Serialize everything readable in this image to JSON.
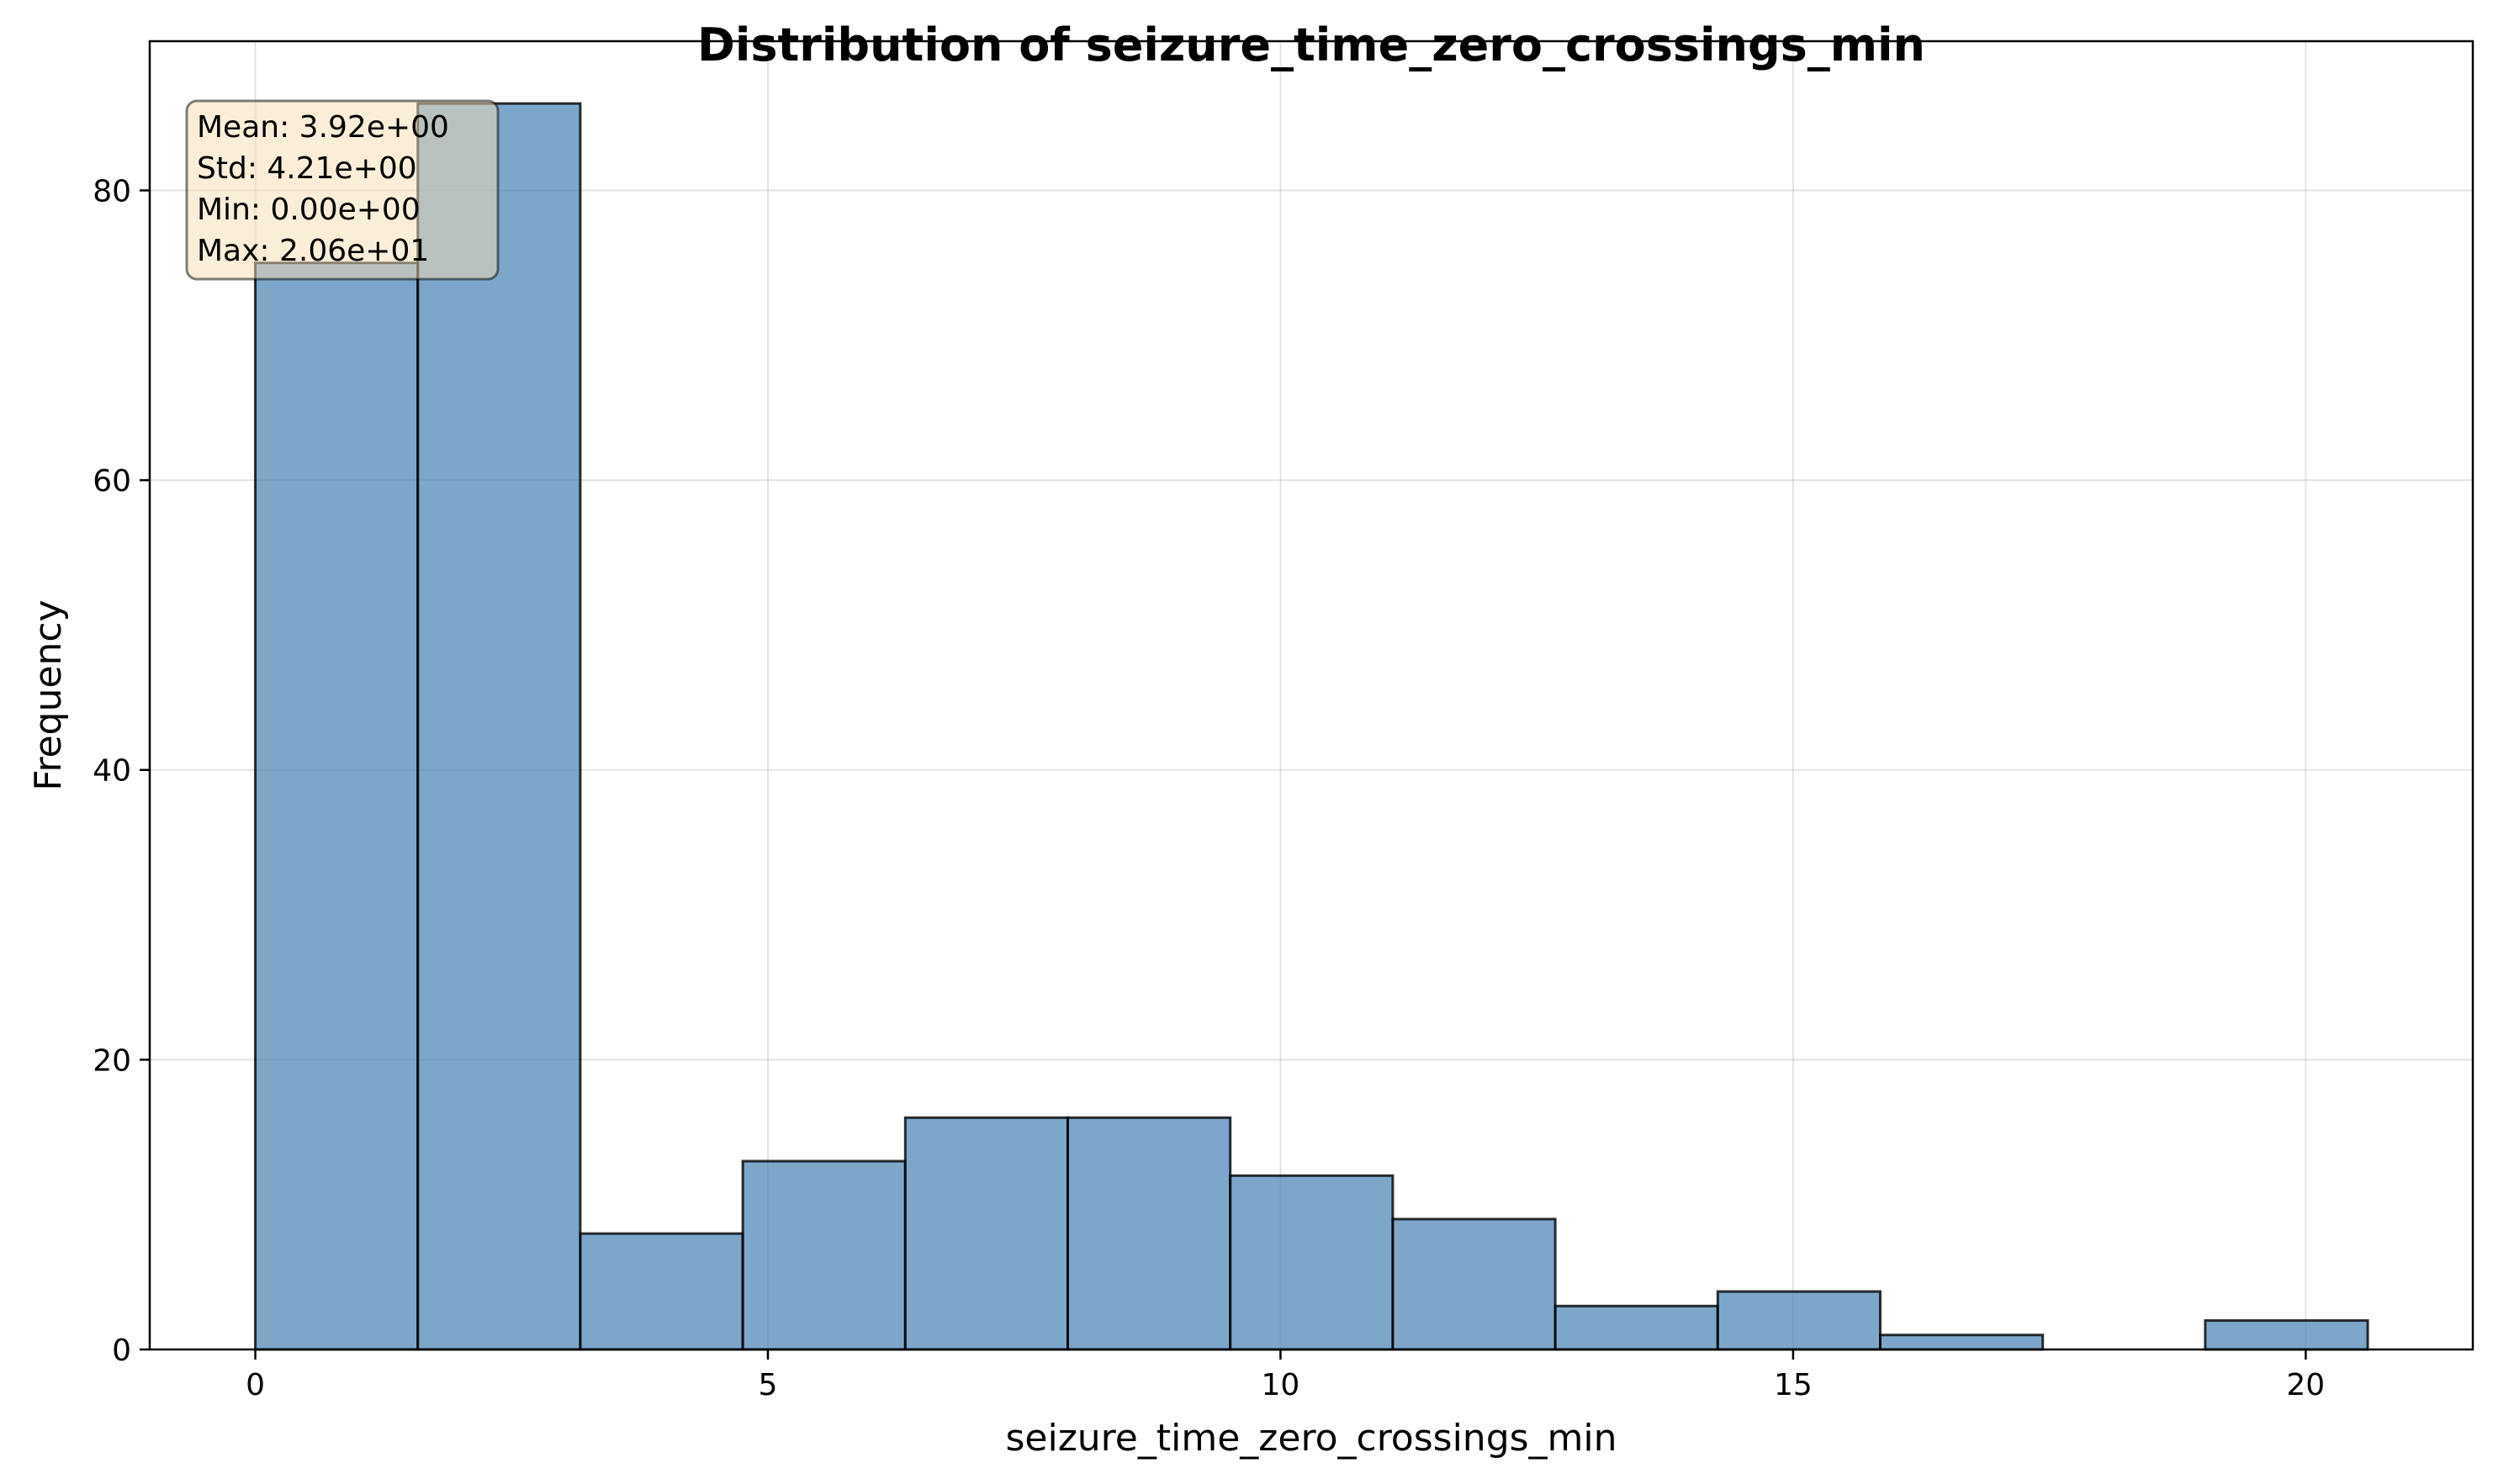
{
  "chart_data": {
    "type": "bar",
    "title": "Distribution of seizure_time_zero_crossings_min",
    "xlabel": "seizure_time_zero_crossings_min",
    "ylabel": "Frequency",
    "xlim": [
      -1.03,
      21.63
    ],
    "ylim": [
      0,
      90.3
    ],
    "xticks": [
      0,
      5,
      10,
      15,
      20
    ],
    "yticks": [
      0,
      20,
      40,
      60,
      80
    ],
    "grid": true,
    "bin_edges": [
      0.0,
      1.585,
      3.17,
      4.755,
      6.34,
      7.925,
      9.51,
      11.095,
      12.68,
      14.265,
      15.85,
      17.435,
      19.02,
      20.605
    ],
    "values": [
      75,
      86,
      8,
      13,
      16,
      16,
      12,
      9,
      3,
      4,
      1,
      0,
      2
    ],
    "colors": {
      "bar": "#4682b4",
      "stats_box": "#f5deb3"
    },
    "stats_box_position": "top-left",
    "stats": {
      "mean": "Mean: 3.92e+00",
      "std": "Std: 4.21e+00",
      "min": "Min: 0.00e+00",
      "max": "Max: 2.06e+01"
    }
  }
}
